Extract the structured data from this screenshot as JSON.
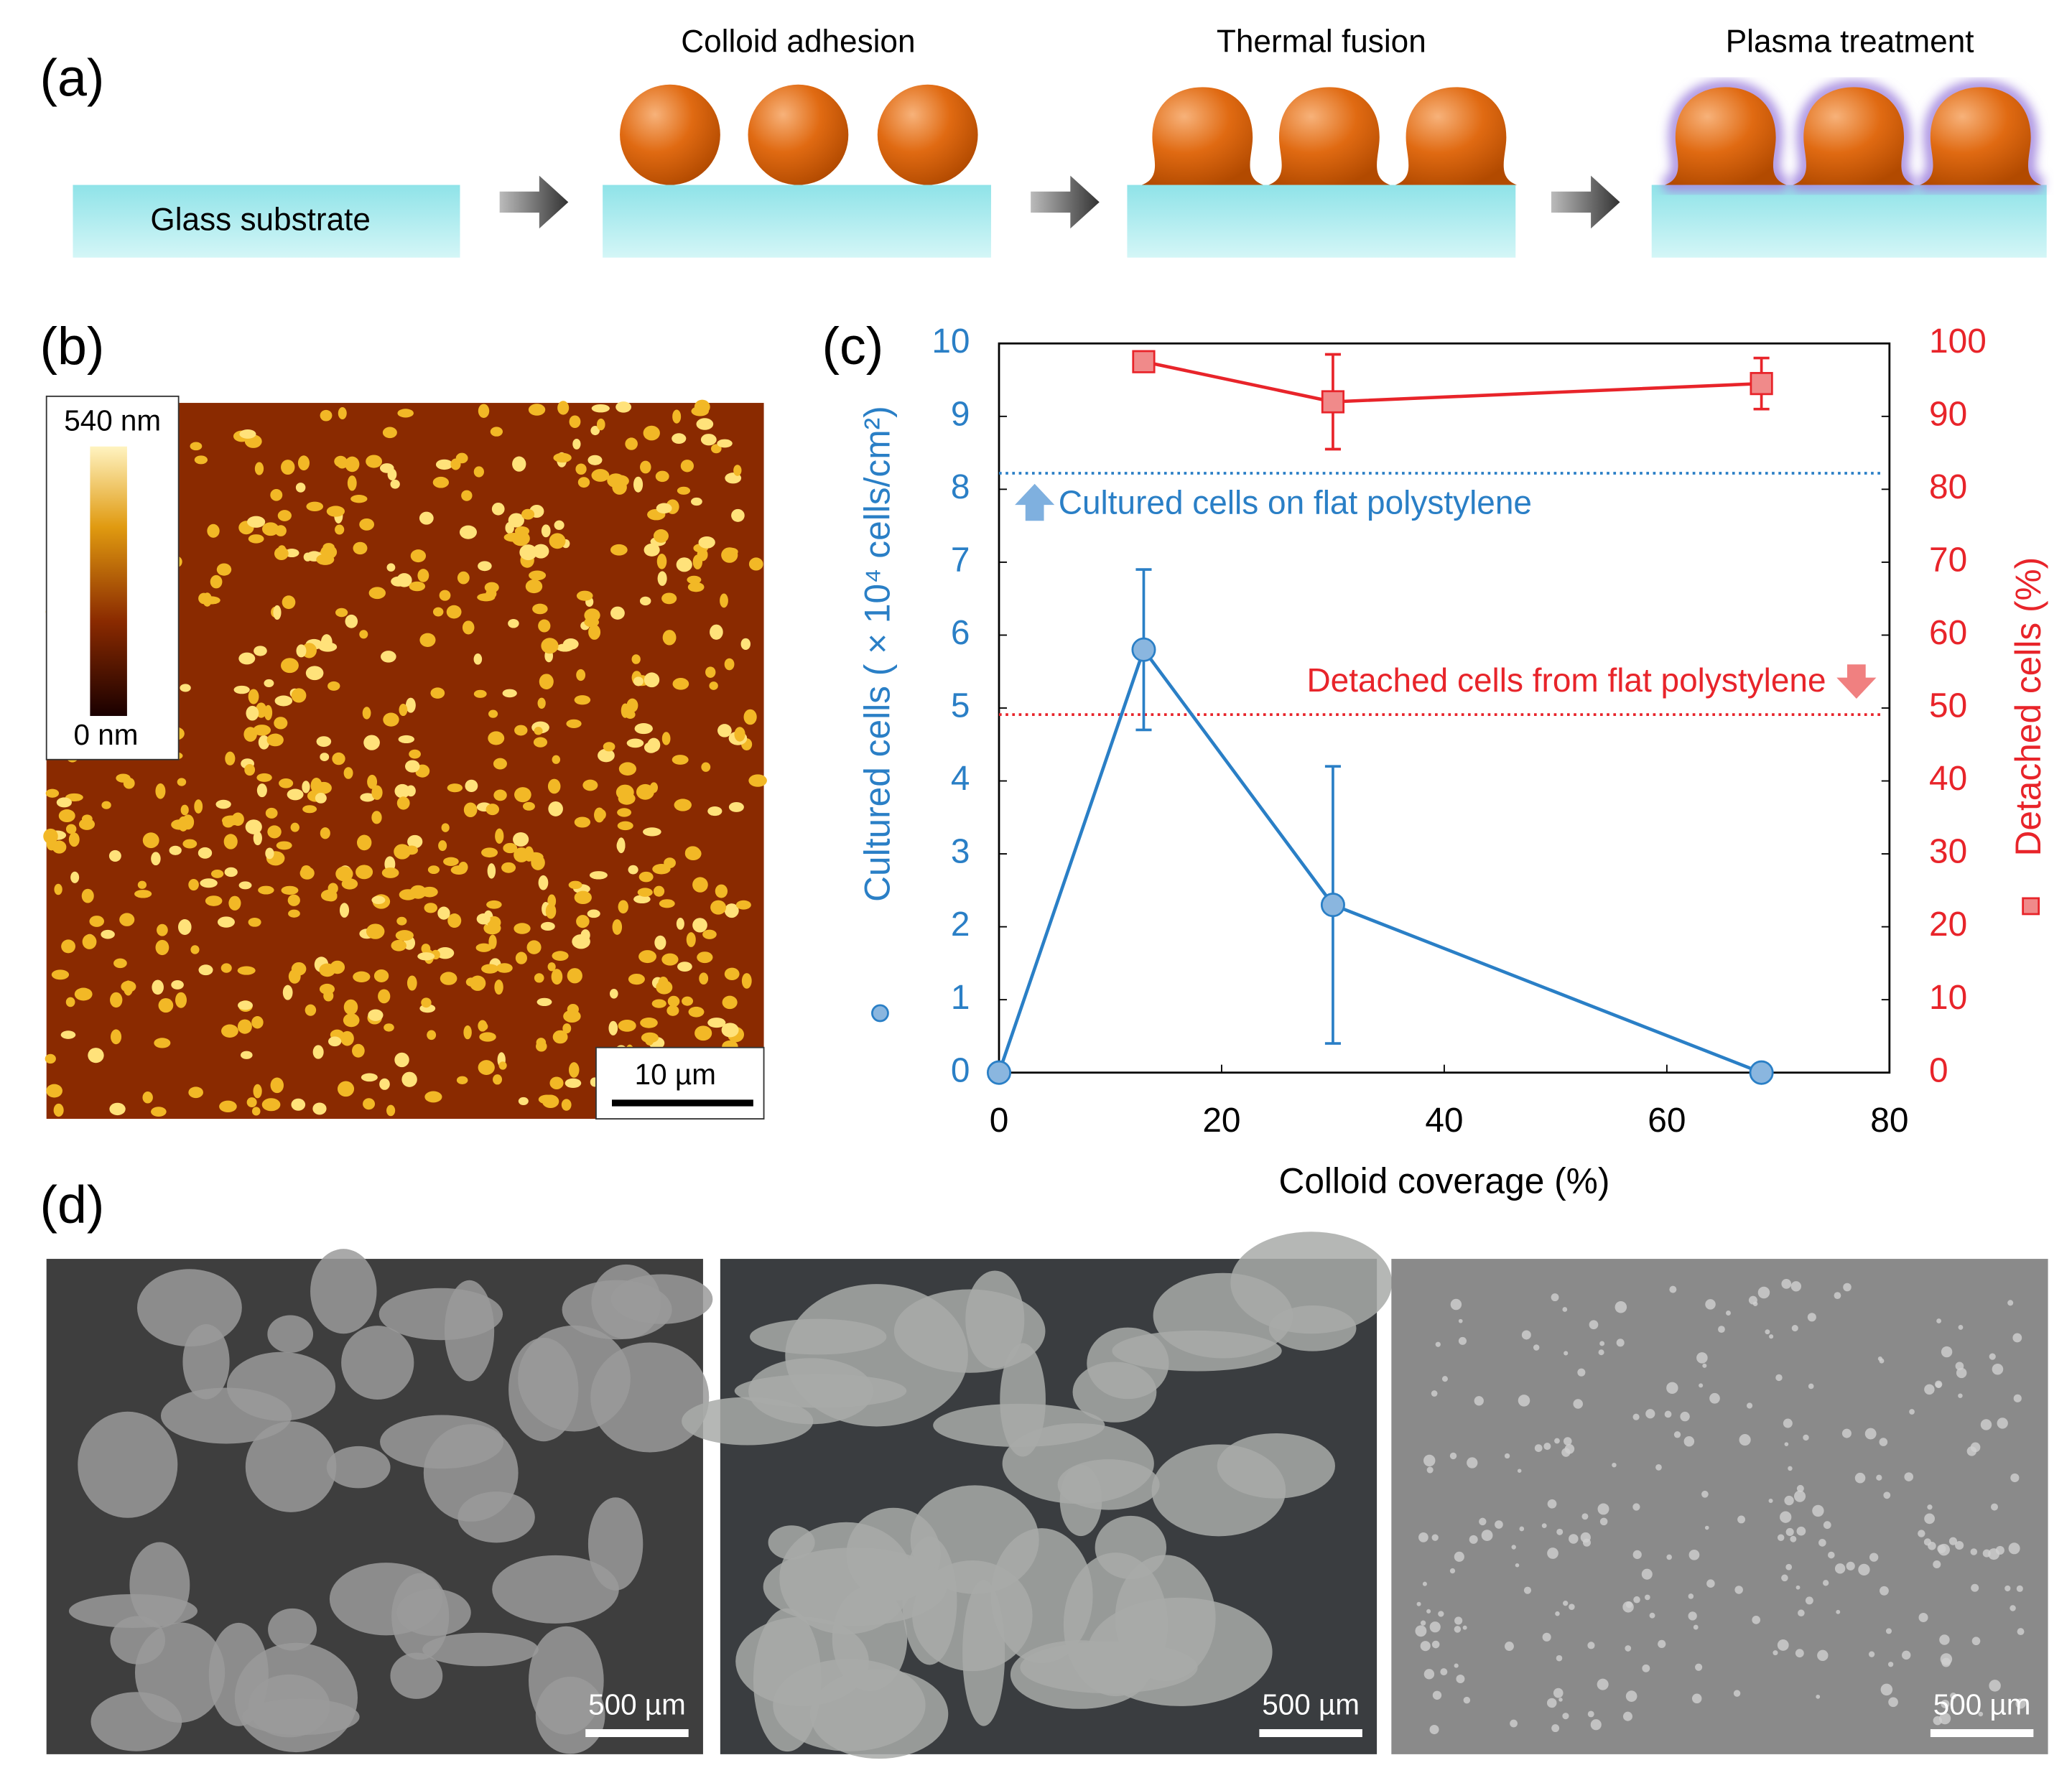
{
  "panel_labels": [
    "(a)",
    "(b)",
    "(c)",
    "(d)"
  ],
  "schematic": {
    "substrate_label": "Glass substrate",
    "steps": [
      "Colloid adhesion",
      "Thermal fusion",
      "Plasma treatment"
    ]
  },
  "afm": {
    "colorbar_max": "540 nm",
    "colorbar_min": "0 nm",
    "scale_bar": "10 µm"
  },
  "micrographs": {
    "scale_bars": [
      "500 µm",
      "500 µm",
      "500 µm"
    ]
  },
  "chart_data": {
    "type": "line",
    "x_label": "Colloid coverage (%)",
    "y_label": "Cultured cells ( × 10⁴ cells/cm²)",
    "y2_label": "Detached cells (%)",
    "xlim": [
      0,
      80
    ],
    "xticks": [
      0,
      20,
      40,
      60,
      80
    ],
    "ylim": [
      0,
      10
    ],
    "yticks": [
      0,
      1,
      2,
      3,
      4,
      5,
      6,
      7,
      8,
      9,
      10
    ],
    "y2lim": [
      0,
      100
    ],
    "y2ticks": [
      0,
      10,
      20,
      30,
      40,
      50,
      60,
      70,
      80,
      90,
      100
    ],
    "series": [
      {
        "name": "Cultured cells",
        "color": "#2a7fc6",
        "marker": "circle",
        "x": [
          0,
          13,
          30,
          68.5
        ],
        "values": [
          0,
          5.8,
          2.3,
          0
        ],
        "errors": [
          null,
          1.1,
          1.9,
          null
        ]
      },
      {
        "name": "Detached cells",
        "color": "#e8242a",
        "marker": "square",
        "axis": "y2",
        "x": [
          13,
          30,
          68.5
        ],
        "values": [
          97.5,
          92,
          94.5
        ],
        "errors": [
          null,
          6.5,
          3.5
        ]
      }
    ],
    "reference_lines": [
      {
        "label": "Cultured cells on flat polystylene",
        "value": 8.22,
        "axis": "y",
        "color": "#2a7fc6"
      },
      {
        "label": "Detached cells from flat polystylene",
        "value": 49.1,
        "axis": "y2",
        "color": "#e8242a"
      }
    ]
  }
}
